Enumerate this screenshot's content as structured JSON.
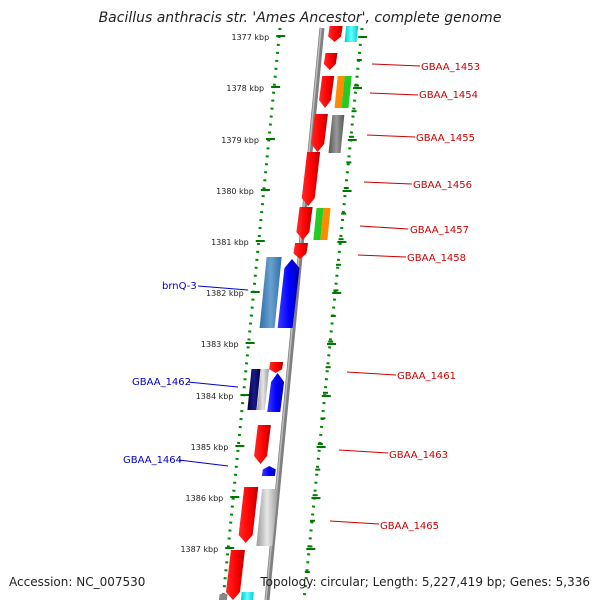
{
  "title": "Bacillus anthracis str. 'Ames Ancestor', complete genome",
  "accession": "Accession: NC_007530",
  "summary": "Topology: circular; Length: 5,227,419 bp; Genes: 5,336",
  "colors": {
    "forward_label": "#cc0000",
    "reverse_label": "#0000cc",
    "tick": "#007700",
    "backbone": "#777777"
  },
  "kbp_ticks": [
    "1377 kbp",
    "1378 kbp",
    "1379 kbp",
    "1380 kbp",
    "1381 kbp",
    "1382 kbp",
    "1383 kbp",
    "1384 kbp",
    "1385 kbp",
    "1386 kbp",
    "1387 kbp"
  ],
  "forward_genes": [
    "GBAA_1453",
    "GBAA_1454",
    "GBAA_1455",
    "GBAA_1456",
    "GBAA_1457",
    "GBAA_1458",
    "GBAA_1461",
    "GBAA_1463",
    "GBAA_1465"
  ],
  "reverse_genes": [
    "brnQ-3",
    "GBAA_1462",
    "GBAA_1464"
  ]
}
